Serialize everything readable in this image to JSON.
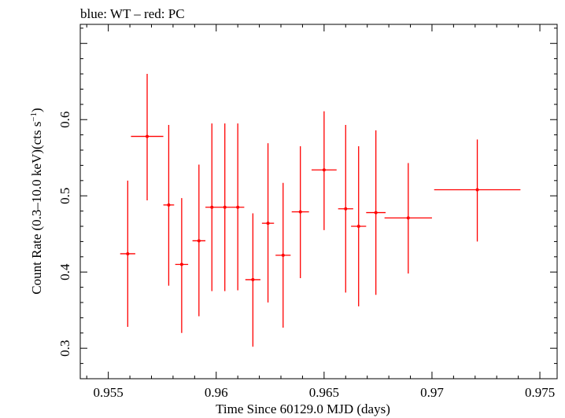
{
  "chart_data": {
    "type": "scatter",
    "title": "blue: WT – red: PC",
    "xlabel": "Time Since 60129.0 MJD (days)",
    "ylabel_prefix": "Count Rate (0.3–10.0 keV)(cts s",
    "ylabel_exp": "−1",
    "ylabel_suffix": ")",
    "xlim": [
      0.9537,
      0.9758
    ],
    "ylim": [
      0.26,
      0.725
    ],
    "xticks": [
      0.955,
      0.96,
      0.965,
      0.97,
      0.975
    ],
    "xtick_labels": [
      "0.955",
      "0.96",
      "0.965",
      "0.97",
      "0.975"
    ],
    "yticks": [
      0.3,
      0.4,
      0.5,
      0.6
    ],
    "ytick_labels": [
      "0.3",
      "0.4",
      "0.5",
      "0.6"
    ],
    "grid": false,
    "series": [
      {
        "color": "#ff0000",
        "points": [
          {
            "x": 0.9559,
            "xerr": 0.00035,
            "y": 0.424,
            "ylo": 0.328,
            "yhi": 0.52
          },
          {
            "x": 0.9568,
            "xerr": 0.00075,
            "y": 0.578,
            "ylo": 0.494,
            "yhi": 0.66
          },
          {
            "x": 0.9578,
            "xerr": 0.00025,
            "y": 0.488,
            "ylo": 0.382,
            "yhi": 0.593
          },
          {
            "x": 0.9584,
            "xerr": 0.0003,
            "y": 0.41,
            "ylo": 0.32,
            "yhi": 0.497
          },
          {
            "x": 0.9592,
            "xerr": 0.0003,
            "y": 0.441,
            "ylo": 0.342,
            "yhi": 0.541
          },
          {
            "x": 0.9598,
            "xerr": 0.0003,
            "y": 0.485,
            "ylo": 0.375,
            "yhi": 0.595
          },
          {
            "x": 0.9604,
            "xerr": 0.0003,
            "y": 0.485,
            "ylo": 0.375,
            "yhi": 0.595
          },
          {
            "x": 0.961,
            "xerr": 0.0003,
            "y": 0.485,
            "ylo": 0.376,
            "yhi": 0.595
          },
          {
            "x": 0.9617,
            "xerr": 0.00035,
            "y": 0.39,
            "ylo": 0.302,
            "yhi": 0.477
          },
          {
            "x": 0.9624,
            "xerr": 0.00028,
            "y": 0.464,
            "ylo": 0.36,
            "yhi": 0.569
          },
          {
            "x": 0.9631,
            "xerr": 0.00035,
            "y": 0.422,
            "ylo": 0.327,
            "yhi": 0.517
          },
          {
            "x": 0.9639,
            "xerr": 0.0004,
            "y": 0.479,
            "ylo": 0.392,
            "yhi": 0.565
          },
          {
            "x": 0.965,
            "xerr": 0.00058,
            "y": 0.534,
            "ylo": 0.455,
            "yhi": 0.611
          },
          {
            "x": 0.966,
            "xerr": 0.00035,
            "y": 0.483,
            "ylo": 0.373,
            "yhi": 0.593
          },
          {
            "x": 0.9666,
            "xerr": 0.00035,
            "y": 0.46,
            "ylo": 0.355,
            "yhi": 0.565
          },
          {
            "x": 0.9674,
            "xerr": 0.00045,
            "y": 0.478,
            "ylo": 0.37,
            "yhi": 0.586
          },
          {
            "x": 0.9689,
            "xerr": 0.0011,
            "y": 0.471,
            "ylo": 0.398,
            "yhi": 0.543
          },
          {
            "x": 0.9721,
            "xerr": 0.002,
            "y": 0.508,
            "ylo": 0.44,
            "yhi": 0.574
          }
        ]
      }
    ]
  }
}
